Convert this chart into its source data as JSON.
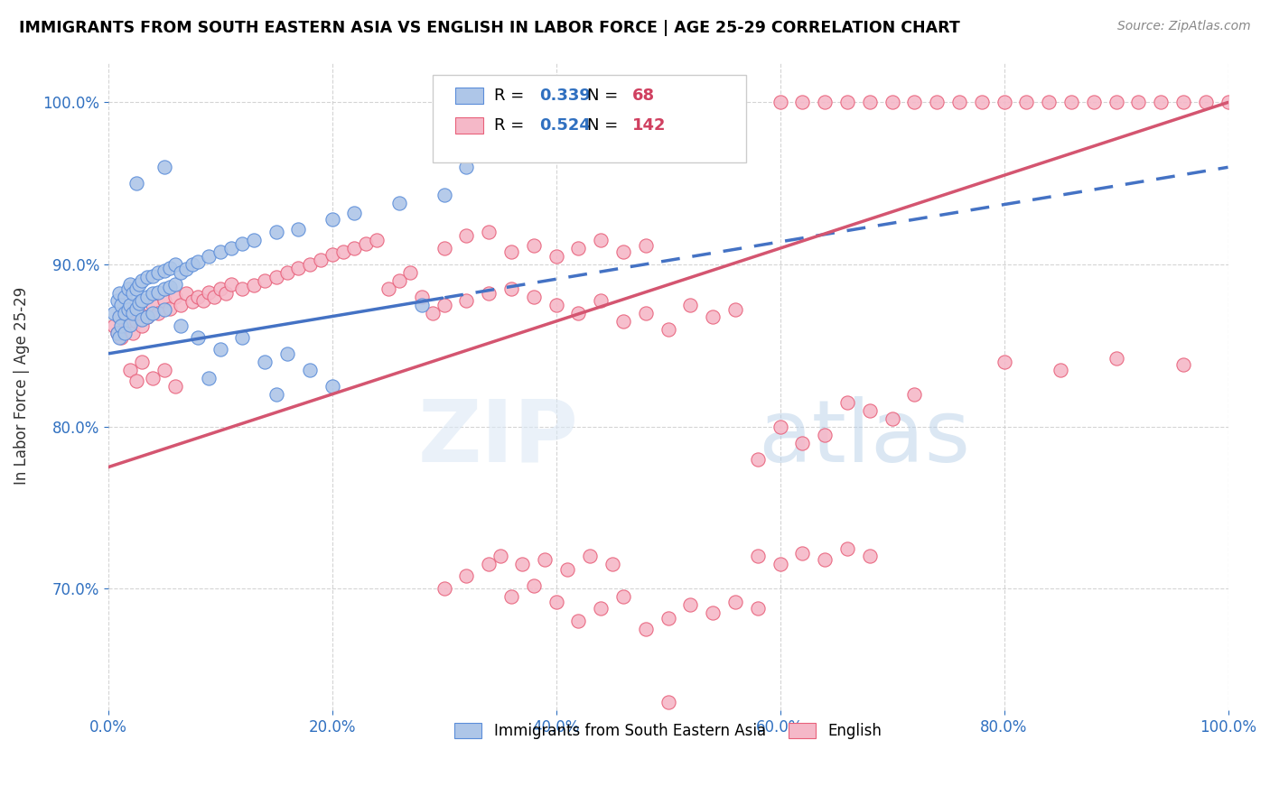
{
  "title": "IMMIGRANTS FROM SOUTH EASTERN ASIA VS ENGLISH IN LABOR FORCE | AGE 25-29 CORRELATION CHART",
  "source": "Source: ZipAtlas.com",
  "ylabel": "In Labor Force | Age 25-29",
  "xlim": [
    0.0,
    1.0
  ],
  "ylim": [
    0.625,
    1.025
  ],
  "xtick_labels": [
    "0.0%",
    "20.0%",
    "40.0%",
    "60.0%",
    "80.0%",
    "100.0%"
  ],
  "xtick_vals": [
    0.0,
    0.2,
    0.4,
    0.6,
    0.8,
    1.0
  ],
  "ytick_labels": [
    "70.0%",
    "80.0%",
    "90.0%",
    "100.0%"
  ],
  "ytick_vals": [
    0.7,
    0.8,
    0.9,
    1.0
  ],
  "blue_R": 0.339,
  "blue_N": 68,
  "pink_R": 0.524,
  "pink_N": 142,
  "blue_color": "#aec6e8",
  "pink_color": "#f5b8c8",
  "blue_edge_color": "#5b8dd9",
  "pink_edge_color": "#e8607a",
  "blue_line_color": "#4472c4",
  "pink_line_color": "#d45570",
  "blue_line_start_x": 0.0,
  "blue_line_start_y": 0.845,
  "blue_line_solid_end_x": 0.3,
  "blue_line_end_x": 1.0,
  "blue_line_end_y": 0.96,
  "pink_line_start_x": 0.0,
  "pink_line_start_y": 0.775,
  "pink_line_end_x": 1.0,
  "pink_line_end_y": 1.0,
  "blue_scatter": [
    [
      0.005,
      0.87
    ],
    [
      0.008,
      0.878
    ],
    [
      0.008,
      0.858
    ],
    [
      0.01,
      0.882
    ],
    [
      0.01,
      0.868
    ],
    [
      0.01,
      0.855
    ],
    [
      0.012,
      0.875
    ],
    [
      0.012,
      0.862
    ],
    [
      0.015,
      0.88
    ],
    [
      0.015,
      0.87
    ],
    [
      0.015,
      0.858
    ],
    [
      0.018,
      0.885
    ],
    [
      0.018,
      0.872
    ],
    [
      0.02,
      0.888
    ],
    [
      0.02,
      0.875
    ],
    [
      0.02,
      0.863
    ],
    [
      0.022,
      0.882
    ],
    [
      0.022,
      0.87
    ],
    [
      0.025,
      0.885
    ],
    [
      0.025,
      0.873
    ],
    [
      0.028,
      0.888
    ],
    [
      0.028,
      0.876
    ],
    [
      0.03,
      0.89
    ],
    [
      0.03,
      0.878
    ],
    [
      0.03,
      0.866
    ],
    [
      0.035,
      0.892
    ],
    [
      0.035,
      0.88
    ],
    [
      0.035,
      0.868
    ],
    [
      0.04,
      0.893
    ],
    [
      0.04,
      0.882
    ],
    [
      0.04,
      0.87
    ],
    [
      0.045,
      0.895
    ],
    [
      0.045,
      0.883
    ],
    [
      0.05,
      0.896
    ],
    [
      0.05,
      0.885
    ],
    [
      0.05,
      0.872
    ],
    [
      0.055,
      0.898
    ],
    [
      0.055,
      0.886
    ],
    [
      0.06,
      0.9
    ],
    [
      0.06,
      0.888
    ],
    [
      0.065,
      0.895
    ],
    [
      0.07,
      0.897
    ],
    [
      0.075,
      0.9
    ],
    [
      0.08,
      0.902
    ],
    [
      0.09,
      0.905
    ],
    [
      0.1,
      0.908
    ],
    [
      0.11,
      0.91
    ],
    [
      0.12,
      0.913
    ],
    [
      0.13,
      0.915
    ],
    [
      0.15,
      0.92
    ],
    [
      0.17,
      0.922
    ],
    [
      0.2,
      0.928
    ],
    [
      0.22,
      0.932
    ],
    [
      0.26,
      0.938
    ],
    [
      0.3,
      0.943
    ],
    [
      0.065,
      0.862
    ],
    [
      0.08,
      0.855
    ],
    [
      0.1,
      0.848
    ],
    [
      0.12,
      0.855
    ],
    [
      0.14,
      0.84
    ],
    [
      0.16,
      0.845
    ],
    [
      0.09,
      0.83
    ],
    [
      0.18,
      0.835
    ],
    [
      0.2,
      0.825
    ],
    [
      0.15,
      0.82
    ],
    [
      0.28,
      0.875
    ],
    [
      0.32,
      0.96
    ],
    [
      0.05,
      0.96
    ],
    [
      0.025,
      0.95
    ]
  ],
  "pink_scatter": [
    [
      0.005,
      0.862
    ],
    [
      0.008,
      0.858
    ],
    [
      0.01,
      0.868
    ],
    [
      0.012,
      0.855
    ],
    [
      0.015,
      0.865
    ],
    [
      0.018,
      0.862
    ],
    [
      0.02,
      0.87
    ],
    [
      0.022,
      0.858
    ],
    [
      0.025,
      0.865
    ],
    [
      0.028,
      0.87
    ],
    [
      0.03,
      0.862
    ],
    [
      0.035,
      0.868
    ],
    [
      0.04,
      0.875
    ],
    [
      0.045,
      0.87
    ],
    [
      0.05,
      0.878
    ],
    [
      0.055,
      0.873
    ],
    [
      0.06,
      0.88
    ],
    [
      0.065,
      0.875
    ],
    [
      0.07,
      0.882
    ],
    [
      0.075,
      0.877
    ],
    [
      0.08,
      0.88
    ],
    [
      0.085,
      0.878
    ],
    [
      0.09,
      0.883
    ],
    [
      0.095,
      0.88
    ],
    [
      0.1,
      0.885
    ],
    [
      0.105,
      0.882
    ],
    [
      0.11,
      0.888
    ],
    [
      0.12,
      0.885
    ],
    [
      0.13,
      0.887
    ],
    [
      0.14,
      0.89
    ],
    [
      0.15,
      0.892
    ],
    [
      0.16,
      0.895
    ],
    [
      0.17,
      0.898
    ],
    [
      0.18,
      0.9
    ],
    [
      0.19,
      0.903
    ],
    [
      0.2,
      0.906
    ],
    [
      0.21,
      0.908
    ],
    [
      0.22,
      0.91
    ],
    [
      0.23,
      0.913
    ],
    [
      0.24,
      0.915
    ],
    [
      0.25,
      0.885
    ],
    [
      0.26,
      0.89
    ],
    [
      0.27,
      0.895
    ],
    [
      0.28,
      0.88
    ],
    [
      0.29,
      0.87
    ],
    [
      0.3,
      0.875
    ],
    [
      0.32,
      0.878
    ],
    [
      0.34,
      0.882
    ],
    [
      0.36,
      0.885
    ],
    [
      0.38,
      0.88
    ],
    [
      0.4,
      0.875
    ],
    [
      0.42,
      0.87
    ],
    [
      0.44,
      0.878
    ],
    [
      0.46,
      0.865
    ],
    [
      0.48,
      0.87
    ],
    [
      0.5,
      0.86
    ],
    [
      0.52,
      0.875
    ],
    [
      0.54,
      0.868
    ],
    [
      0.56,
      0.872
    ],
    [
      0.58,
      0.78
    ],
    [
      0.6,
      0.8
    ],
    [
      0.62,
      0.79
    ],
    [
      0.64,
      0.795
    ],
    [
      0.66,
      0.815
    ],
    [
      0.68,
      0.81
    ],
    [
      0.7,
      0.805
    ],
    [
      0.72,
      0.82
    ],
    [
      0.8,
      0.84
    ],
    [
      0.85,
      0.835
    ],
    [
      0.9,
      0.842
    ],
    [
      0.96,
      0.838
    ],
    [
      0.3,
      0.91
    ],
    [
      0.32,
      0.918
    ],
    [
      0.34,
      0.92
    ],
    [
      0.36,
      0.908
    ],
    [
      0.38,
      0.912
    ],
    [
      0.4,
      0.905
    ],
    [
      0.42,
      0.91
    ],
    [
      0.44,
      0.915
    ],
    [
      0.46,
      0.908
    ],
    [
      0.48,
      0.912
    ],
    [
      0.02,
      0.835
    ],
    [
      0.025,
      0.828
    ],
    [
      0.03,
      0.84
    ],
    [
      0.04,
      0.83
    ],
    [
      0.05,
      0.835
    ],
    [
      0.06,
      0.825
    ],
    [
      0.3,
      0.7
    ],
    [
      0.32,
      0.708
    ],
    [
      0.34,
      0.715
    ],
    [
      0.36,
      0.695
    ],
    [
      0.38,
      0.702
    ],
    [
      0.4,
      0.692
    ],
    [
      0.42,
      0.68
    ],
    [
      0.44,
      0.688
    ],
    [
      0.46,
      0.695
    ],
    [
      0.48,
      0.675
    ],
    [
      0.5,
      0.682
    ],
    [
      0.52,
      0.69
    ],
    [
      0.54,
      0.685
    ],
    [
      0.56,
      0.692
    ],
    [
      0.58,
      0.688
    ],
    [
      0.5,
      0.63
    ],
    [
      0.58,
      0.72
    ],
    [
      0.6,
      0.715
    ],
    [
      0.62,
      0.722
    ],
    [
      0.64,
      0.718
    ],
    [
      0.66,
      0.725
    ],
    [
      0.68,
      0.72
    ],
    [
      0.35,
      0.72
    ],
    [
      0.37,
      0.715
    ],
    [
      0.39,
      0.718
    ],
    [
      0.41,
      0.712
    ],
    [
      0.43,
      0.72
    ],
    [
      0.45,
      0.715
    ],
    [
      0.6,
      1.0
    ],
    [
      0.62,
      1.0
    ],
    [
      0.64,
      1.0
    ],
    [
      0.66,
      1.0
    ],
    [
      0.68,
      1.0
    ],
    [
      0.7,
      1.0
    ],
    [
      0.72,
      1.0
    ],
    [
      0.74,
      1.0
    ],
    [
      0.76,
      1.0
    ],
    [
      0.78,
      1.0
    ],
    [
      0.8,
      1.0
    ],
    [
      0.82,
      1.0
    ],
    [
      0.84,
      1.0
    ],
    [
      0.86,
      1.0
    ],
    [
      0.88,
      1.0
    ],
    [
      0.9,
      1.0
    ],
    [
      0.92,
      1.0
    ],
    [
      0.94,
      1.0
    ],
    [
      0.96,
      1.0
    ],
    [
      0.98,
      1.0
    ],
    [
      1.0,
      1.0
    ]
  ],
  "watermark_zip": "ZIP",
  "watermark_atlas": "atlas",
  "legend_label_blue": "Immigrants from South Eastern Asia",
  "legend_label_pink": "English"
}
